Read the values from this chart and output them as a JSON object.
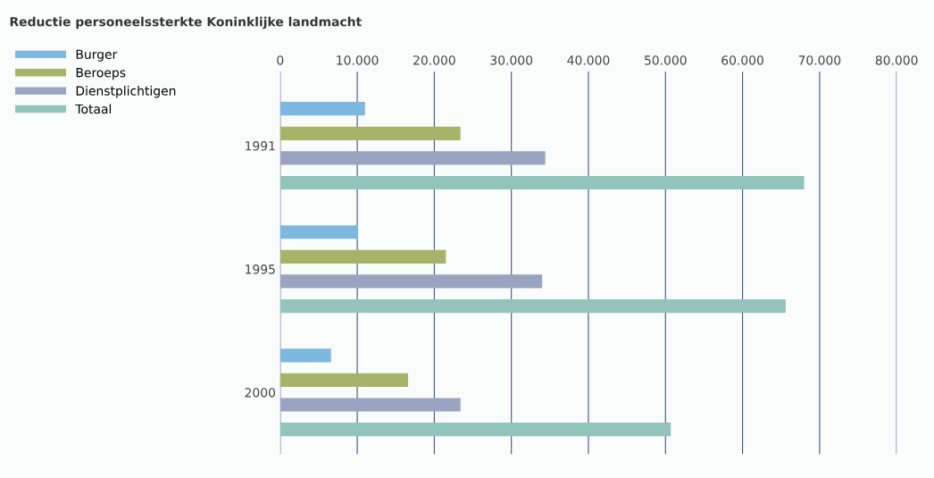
{
  "chart_data": {
    "type": "bar",
    "orientation": "horizontal",
    "title": "Reductie personeelssterkte Koninklijke landmacht",
    "categories": [
      "1991",
      "1995",
      "2000"
    ],
    "series": [
      {
        "name": "Burger",
        "color": "#7db8e0",
        "values": [
          11000,
          10100,
          6600
        ]
      },
      {
        "name": "Beroeps",
        "color": "#a8b36a",
        "values": [
          23400,
          21500,
          16600
        ]
      },
      {
        "name": "Dienstplichtigen",
        "color": "#9aa3c0",
        "values": [
          34400,
          34000,
          23400
        ]
      },
      {
        "name": "Totaal",
        "color": "#93c4bb",
        "values": [
          68000,
          65600,
          50700
        ]
      }
    ],
    "xlim": [
      0,
      80000
    ],
    "xticks": [
      0,
      {
        "value": 10000,
        "label": "10.000"
      },
      {
        "value": 20000,
        "label": "20.000"
      },
      {
        "value": 30000,
        "label": "30.000"
      },
      {
        "value": 40000,
        "label": "40.000"
      },
      {
        "value": 50000,
        "label": "50.000"
      },
      {
        "value": 60000,
        "label": "60.000"
      },
      {
        "value": 70000,
        "label": "70.000"
      },
      {
        "value": 80000,
        "label": "80.000"
      }
    ],
    "grid": "x",
    "legend": "top left"
  }
}
